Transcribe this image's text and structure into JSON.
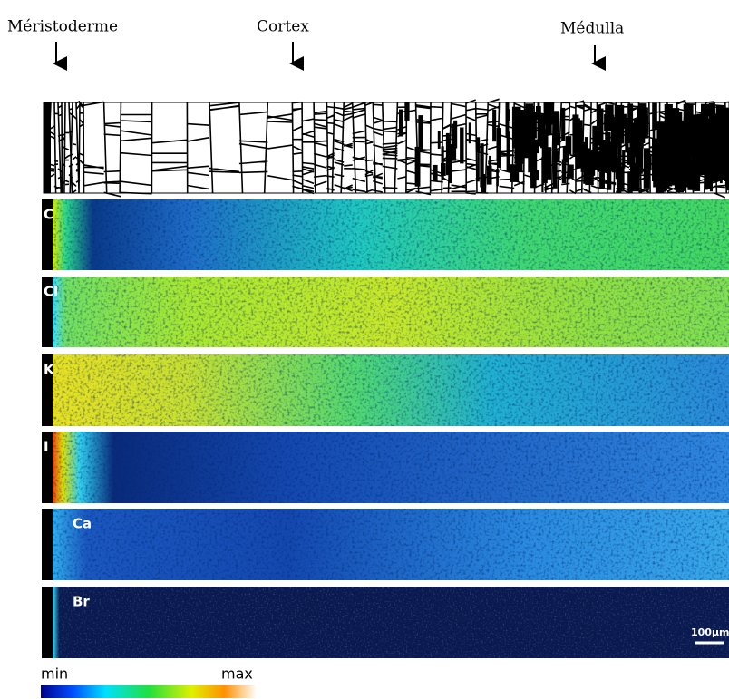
{
  "header": {
    "labels": [
      "Méristoderme",
      "Cortex",
      "Médulla"
    ]
  },
  "panels": [
    {
      "label": "C"
    },
    {
      "label": "Cl"
    },
    {
      "label": "K"
    },
    {
      "label": "I"
    },
    {
      "label": "Ca"
    },
    {
      "label": "Br"
    }
  ],
  "scale_bar": "100µm",
  "colorbar": {
    "min": "min",
    "max": "max"
  }
}
